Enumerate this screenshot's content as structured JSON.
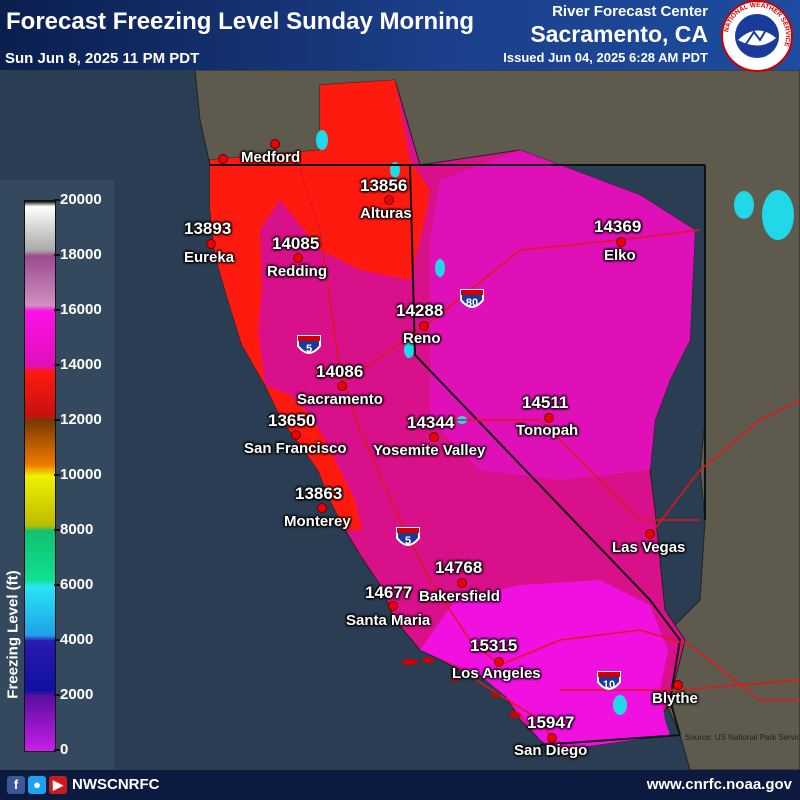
{
  "header": {
    "title": "Forecast Freezing Level Sunday Morning",
    "valid_time": "Sun Jun 8, 2025 11 PM PDT",
    "center_line": "River Forecast Center",
    "office": "Sacramento, CA",
    "issued": "Issued Jun 04, 2025 6:28 AM PDT",
    "logo_text": "NATIONAL WEATHER SERVICE",
    "logo_icon": "nws-logo-icon"
  },
  "legend": {
    "title": "Freezing Level (ft)",
    "ticks": [
      "20000",
      "18000",
      "16000",
      "14000",
      "12000",
      "10000",
      "8000",
      "6000",
      "4000",
      "2000",
      "0"
    ],
    "colors": {
      "0": "#c81ee8",
      "2000": "#5a0fa0",
      "4000": "#2a1ab0",
      "6000": "#28e6f5",
      "8000": "#10c070",
      "10000": "#f0f000",
      "12000": "#f07a00",
      "14000": "#ff1a10",
      "16000": "#ff10e8",
      "18000": "#d090c0",
      "20000": "#ffffff"
    }
  },
  "map": {
    "colors": {
      "ocean": "#2a3d52",
      "land_other": "#5e5a4e",
      "region_13k": "#ff1a10",
      "region_14k": "#d8108a",
      "region_14k_light": "#e010b8",
      "region_15k": "#f010e0",
      "lakes": "#20d8e8",
      "roads": "#e01818"
    },
    "interstates": [
      "80",
      "5",
      "5",
      "10"
    ],
    "stations": [
      {
        "name": "Medford",
        "value": ""
      },
      {
        "name": "Alturas",
        "value": "13856"
      },
      {
        "name": "Eureka",
        "value": "13893"
      },
      {
        "name": "Redding",
        "value": "14085"
      },
      {
        "name": "Elko",
        "value": "14369"
      },
      {
        "name": "Reno",
        "value": "14288"
      },
      {
        "name": "Sacramento",
        "value": "14086"
      },
      {
        "name": "San Francisco",
        "value": "13650"
      },
      {
        "name": "Yosemite Valley",
        "value": "14344"
      },
      {
        "name": "Tonopah",
        "value": "14511"
      },
      {
        "name": "Monterey",
        "value": "13863"
      },
      {
        "name": "Las Vegas",
        "value": ""
      },
      {
        "name": "Bakersfield",
        "value": "14768"
      },
      {
        "name": "Santa Maria",
        "value": "14677"
      },
      {
        "name": "Los Angeles",
        "value": "15315"
      },
      {
        "name": "Blythe",
        "value": ""
      },
      {
        "name": "San Diego",
        "value": "15947"
      }
    ],
    "credit": "Source: US National Park Service"
  },
  "footer": {
    "handle": "NWSCNRFC",
    "website": "www.cnrfc.noaa.gov",
    "social_icons": [
      "facebook-icon",
      "twitter-icon",
      "youtube-icon"
    ]
  }
}
